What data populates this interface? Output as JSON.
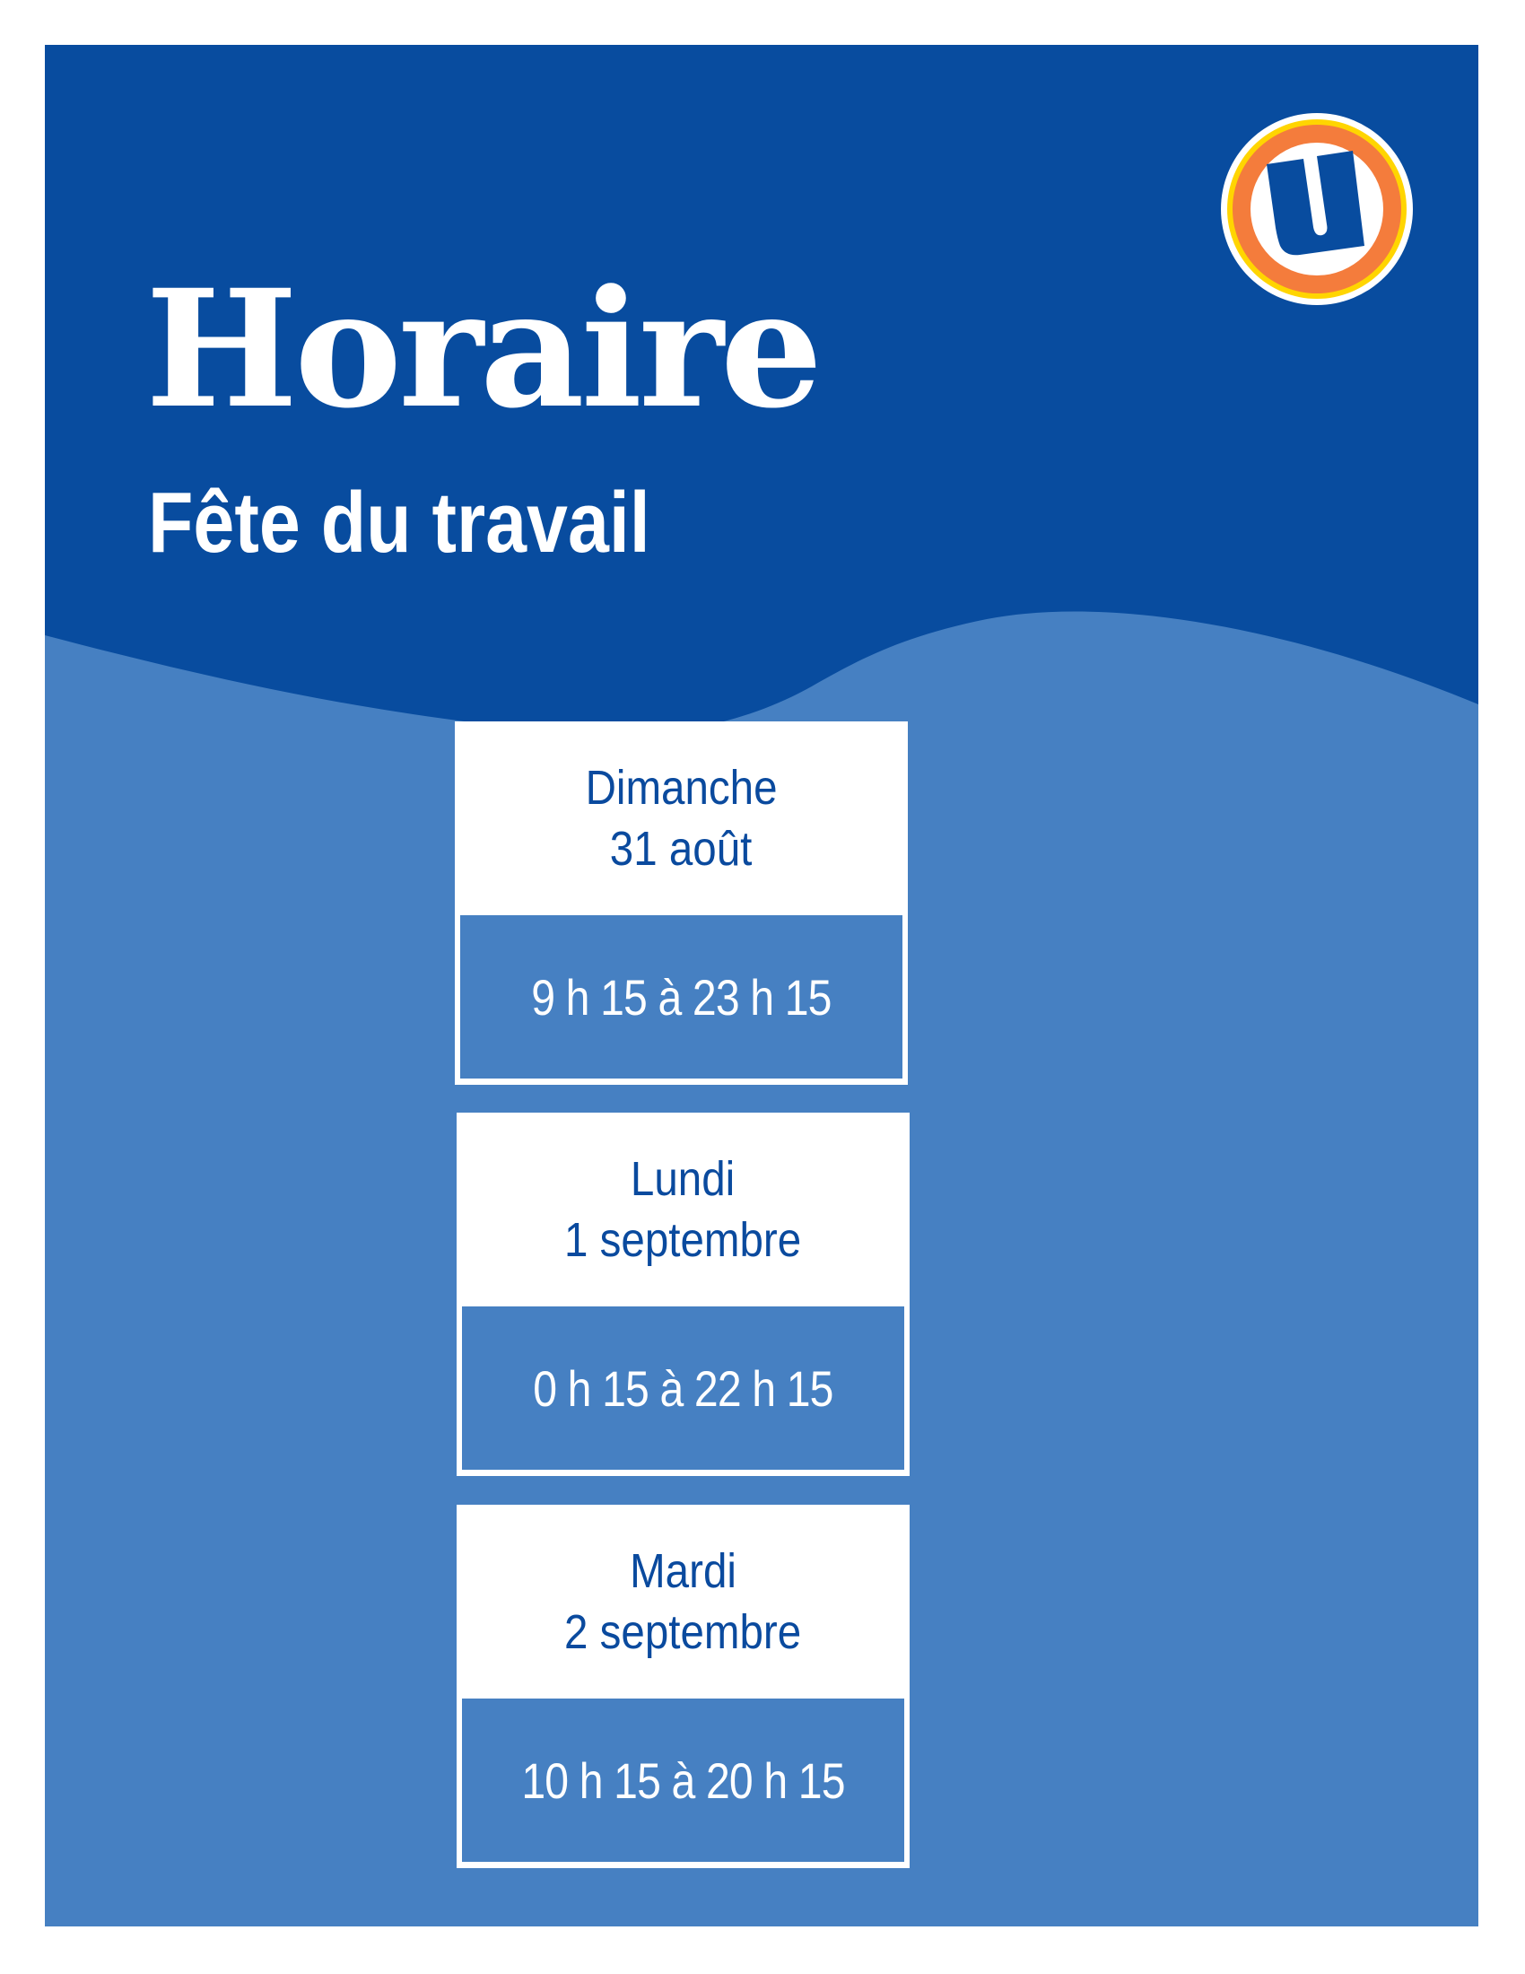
{
  "header": {
    "title": "Horaire",
    "subtitle": "Fête du travail"
  },
  "logo": {
    "letter": "U",
    "colors": {
      "ring_outer": "#FFFFFF",
      "ring_yellow": "#FFD500",
      "ring_orange": "#F47C3C",
      "letter": "#084C9F"
    }
  },
  "colors": {
    "dark_blue": "#084C9F",
    "light_blue": "#4680C2",
    "text_blue": "#0A4A9E"
  },
  "schedule": [
    {
      "day": "Dimanche",
      "date": "31 août",
      "hours": "9 h 15 à 23 h 15"
    },
    {
      "day": "Lundi",
      "date": "1 septembre",
      "hours": "0 h 15 à 22 h 15"
    },
    {
      "day": "Mardi",
      "date": "2 septembre",
      "hours": "10 h 15 à 20 h 15"
    }
  ]
}
